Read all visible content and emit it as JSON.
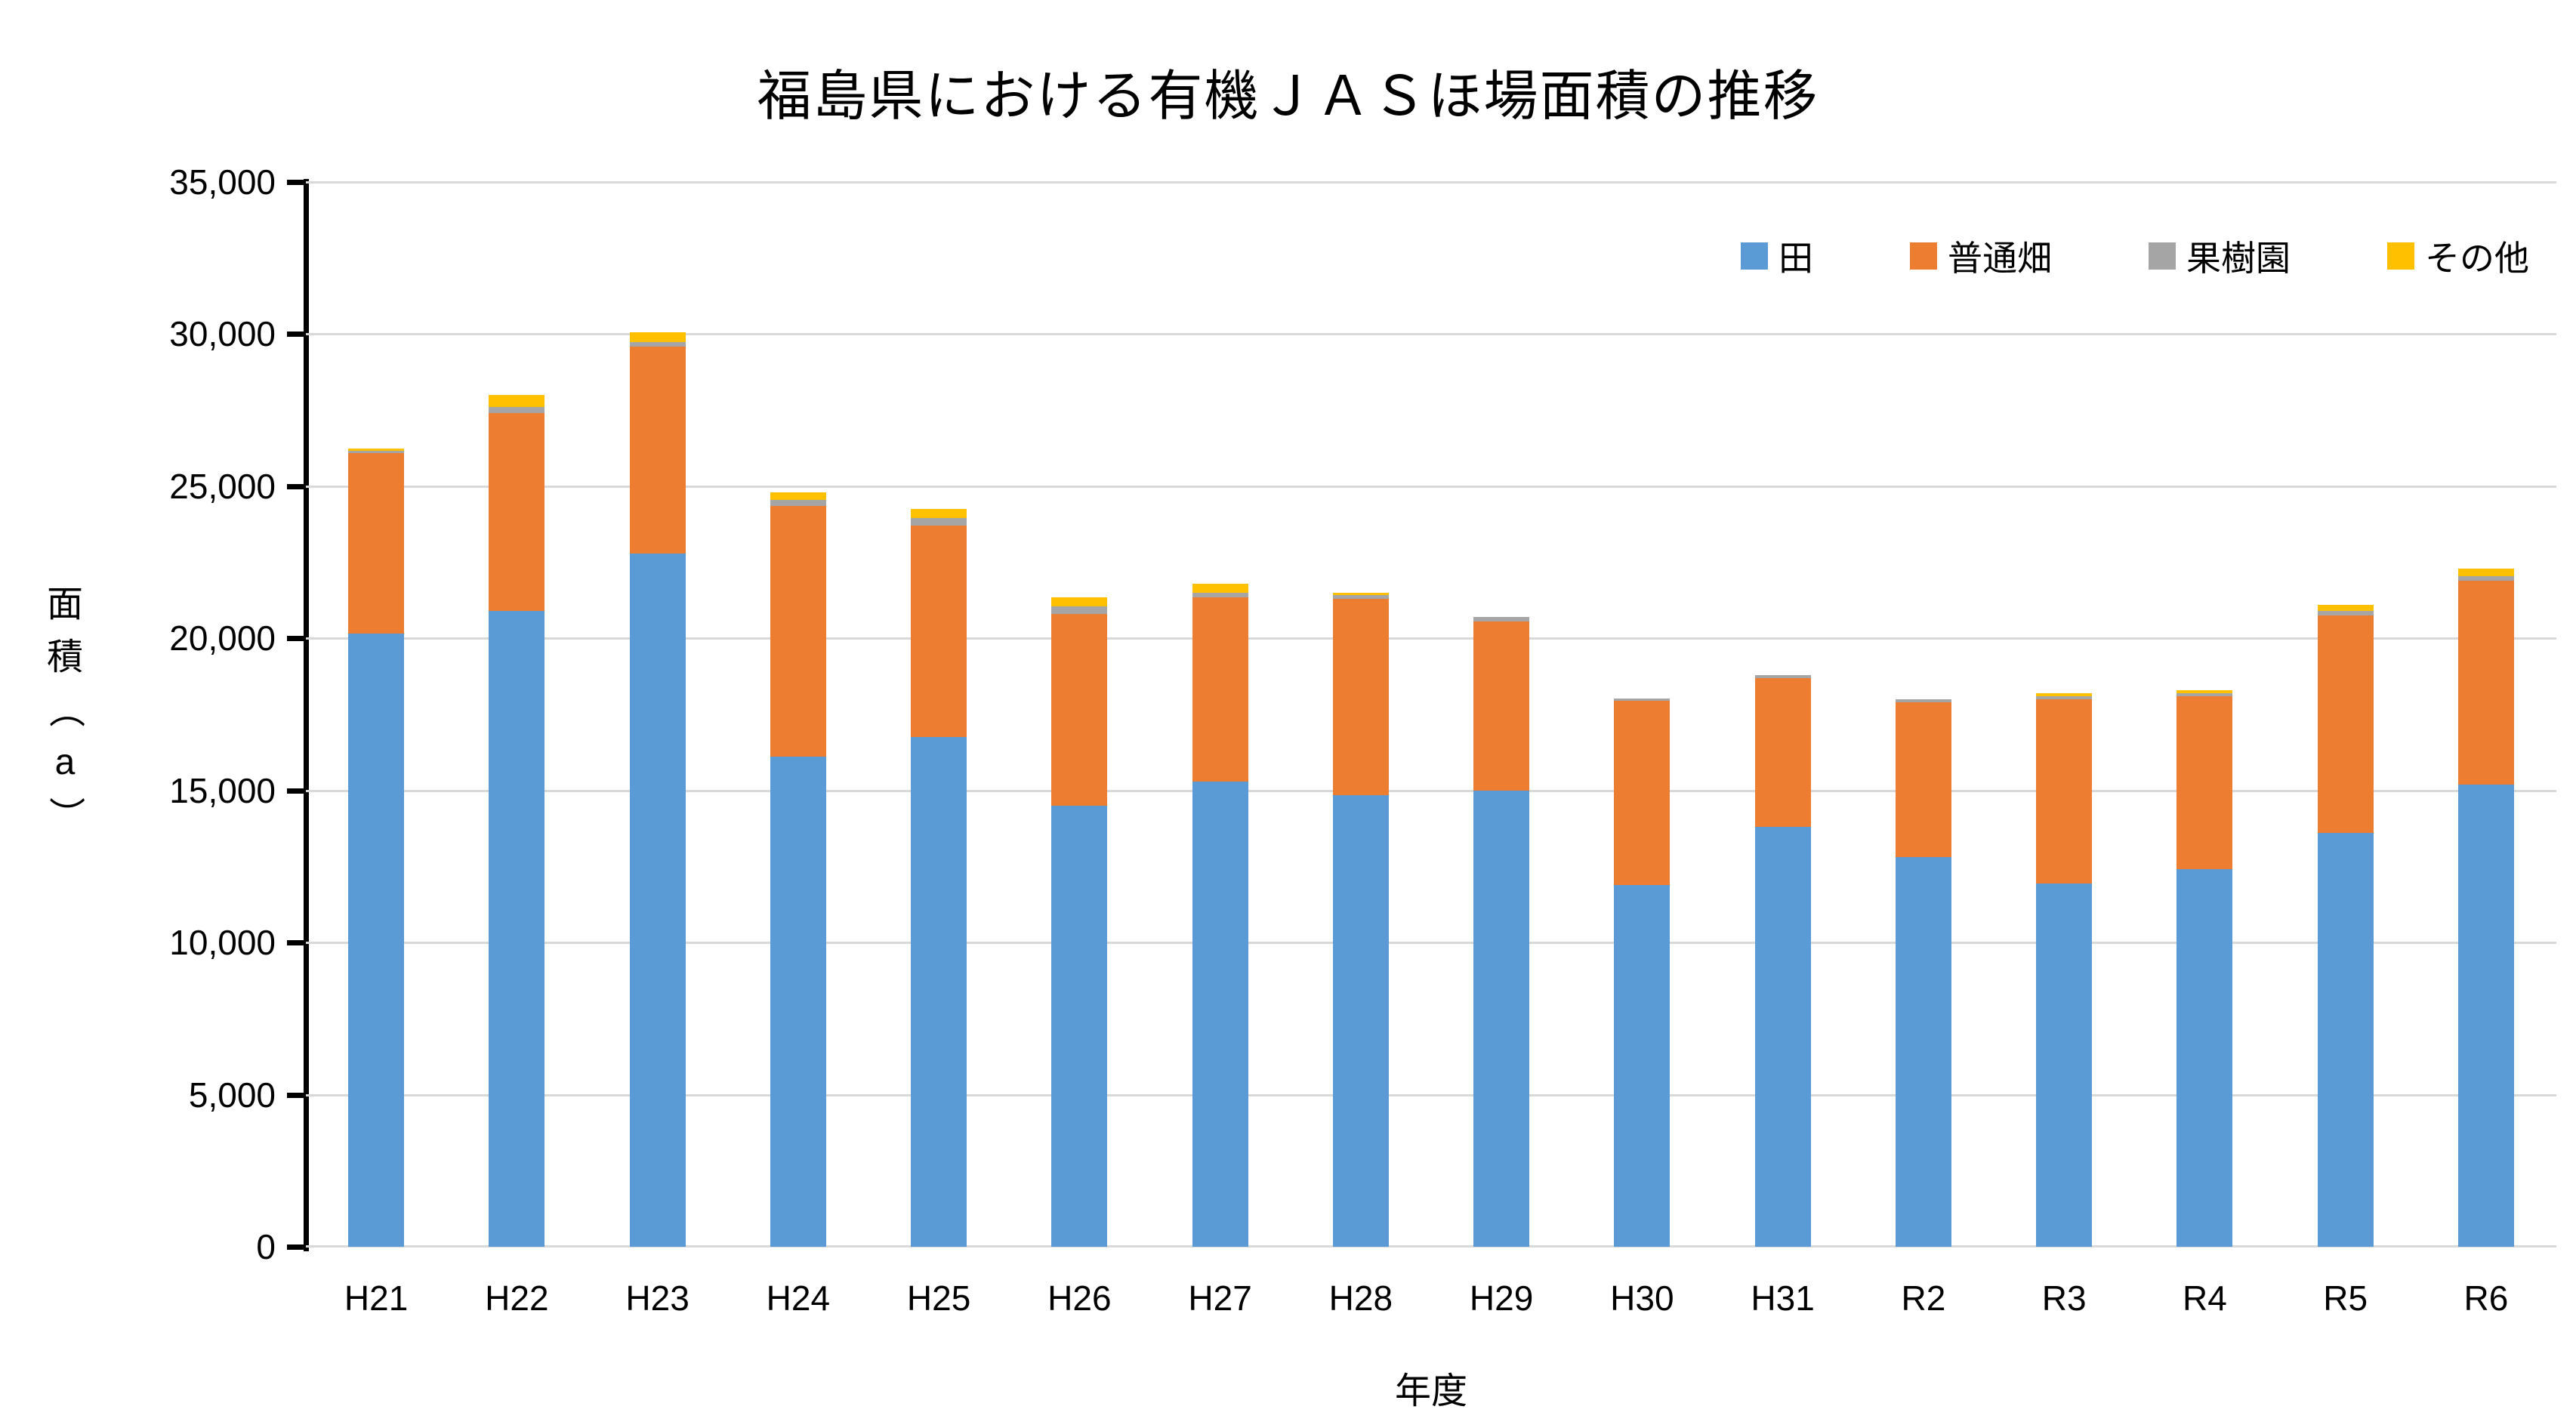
{
  "chart_data": {
    "type": "bar",
    "stacked": true,
    "title": "福島県における有機ＪＡＳほ場面積の推移",
    "xlabel": "年度",
    "ylabel": "面積（a）",
    "ylim": [
      0,
      35000
    ],
    "ytick_step": 5000,
    "ytick_labels": [
      "0",
      "5,000",
      "10,000",
      "15,000",
      "20,000",
      "25,000",
      "30,000",
      "35,000"
    ],
    "grid": true,
    "legend_position": "top-right",
    "categories": [
      "H21",
      "H22",
      "H23",
      "H24",
      "H25",
      "H26",
      "H27",
      "H28",
      "H29",
      "H30",
      "H31",
      "R2",
      "R3",
      "R4",
      "R5",
      "R6"
    ],
    "series": [
      {
        "name": "田",
        "key": "paddy-field",
        "color": "#5B9BD5",
        "values": [
          20150,
          20900,
          22800,
          16100,
          16750,
          14500,
          15300,
          14850,
          15000,
          11900,
          13800,
          12800,
          11950,
          12400,
          13600,
          15200
        ]
      },
      {
        "name": "普通畑",
        "key": "upland-field",
        "color": "#ED7D31",
        "values": [
          5950,
          6500,
          6800,
          8250,
          6950,
          6300,
          6050,
          6450,
          5550,
          6050,
          4900,
          5100,
          6050,
          5700,
          7150,
          6700
        ]
      },
      {
        "name": "果樹園",
        "key": "orchard",
        "color": "#A5A5A5",
        "values": [
          75,
          200,
          150,
          200,
          250,
          250,
          150,
          130,
          150,
          80,
          100,
          100,
          100,
          100,
          150,
          150
        ]
      },
      {
        "name": "その他",
        "key": "other",
        "color": "#FFC000",
        "values": [
          75,
          400,
          300,
          250,
          300,
          300,
          300,
          70,
          0,
          0,
          0,
          0,
          100,
          100,
          200,
          250
        ]
      }
    ]
  },
  "colors": {
    "background": "#FFFFFF",
    "gridline": "#D9D9D9",
    "axis_line": "#000000",
    "text": "#000000"
  }
}
